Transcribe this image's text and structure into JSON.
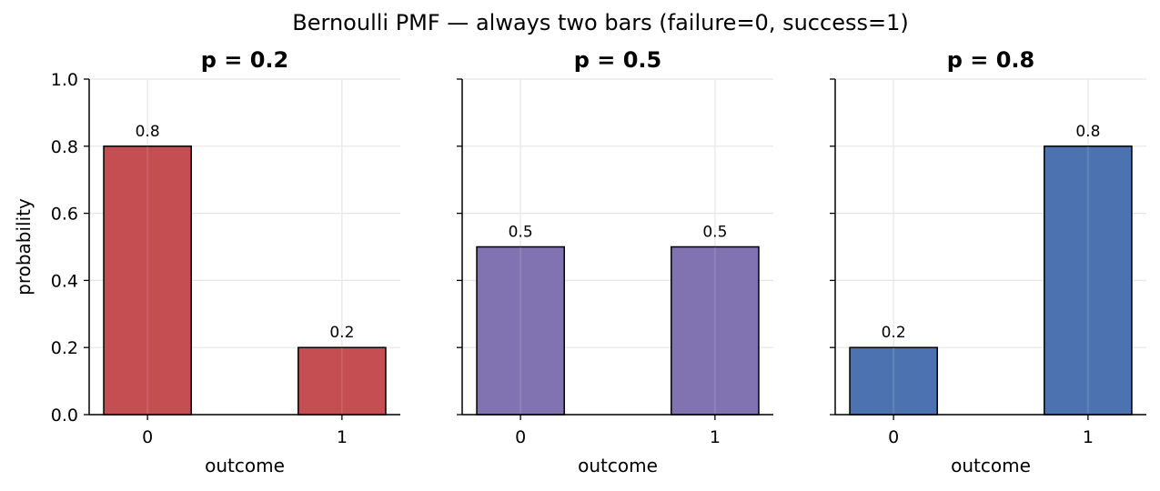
{
  "figure": {
    "suptitle": "Bernoulli PMF — always two bars (failure=0, success=1)"
  },
  "chart_data": [
    {
      "type": "bar",
      "title": "p = 0.2",
      "categories": [
        "0",
        "1"
      ],
      "values": [
        0.8,
        0.2
      ],
      "value_labels": [
        "0.8",
        "0.2"
      ],
      "color": "#c44e52",
      "xlabel": "outcome",
      "ylabel": "probability",
      "ylim": [
        0,
        1.0
      ],
      "yticks": [
        "0.0",
        "0.2",
        "0.4",
        "0.6",
        "0.8",
        "1.0"
      ],
      "grid": true
    },
    {
      "type": "bar",
      "title": "p = 0.5",
      "categories": [
        "0",
        "1"
      ],
      "values": [
        0.5,
        0.5
      ],
      "value_labels": [
        "0.5",
        "0.5"
      ],
      "color": "#8172b2",
      "xlabel": "outcome",
      "ylabel": "",
      "ylim": [
        0,
        1.0
      ],
      "yticks": [],
      "grid": true
    },
    {
      "type": "bar",
      "title": "p = 0.8",
      "categories": [
        "0",
        "1"
      ],
      "values": [
        0.2,
        0.8
      ],
      "value_labels": [
        "0.2",
        "0.8"
      ],
      "color": "#4c72b0",
      "xlabel": "outcome",
      "ylabel": "",
      "ylim": [
        0,
        1.0
      ],
      "yticks": [],
      "grid": true
    }
  ]
}
